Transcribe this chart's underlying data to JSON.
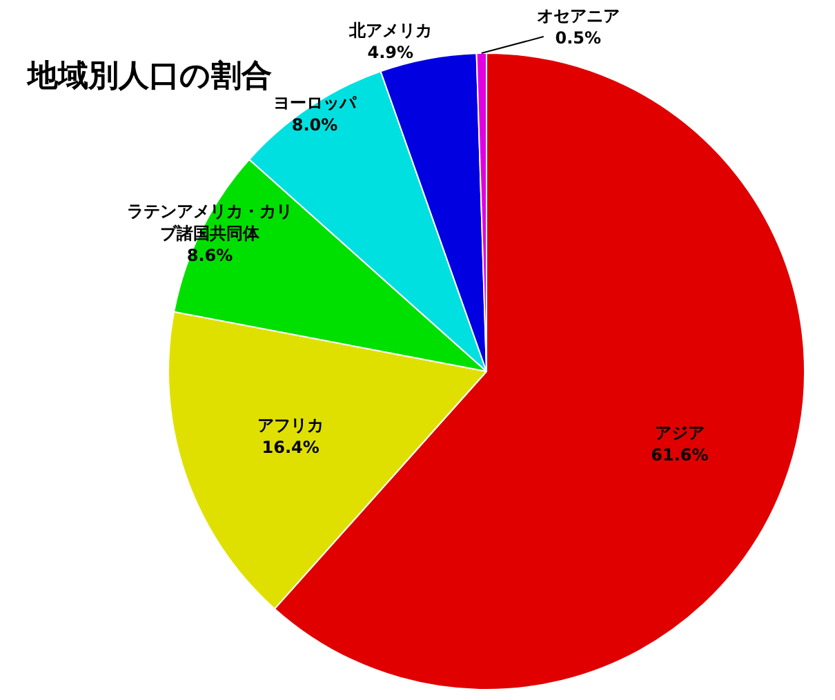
{
  "chart_data": {
    "type": "pie",
    "title": "地域別人口の割合",
    "categories": [
      "アジア",
      "アフリカ",
      "ラテンアメリカ・カリブ諸国共同体",
      "ヨーロッパ",
      "北アメリカ",
      "オセアニア"
    ],
    "values": [
      61.6,
      16.4,
      8.6,
      8.0,
      4.9,
      0.5
    ],
    "value_labels": [
      "61.6%",
      "16.4%",
      "8.6%",
      "8.0%",
      "4.9%",
      "0.5%"
    ],
    "colors": [
      "#e00000",
      "#e0e000",
      "#00e000",
      "#00e0e0",
      "#0000e0",
      "#e000e0"
    ],
    "legend": false
  }
}
